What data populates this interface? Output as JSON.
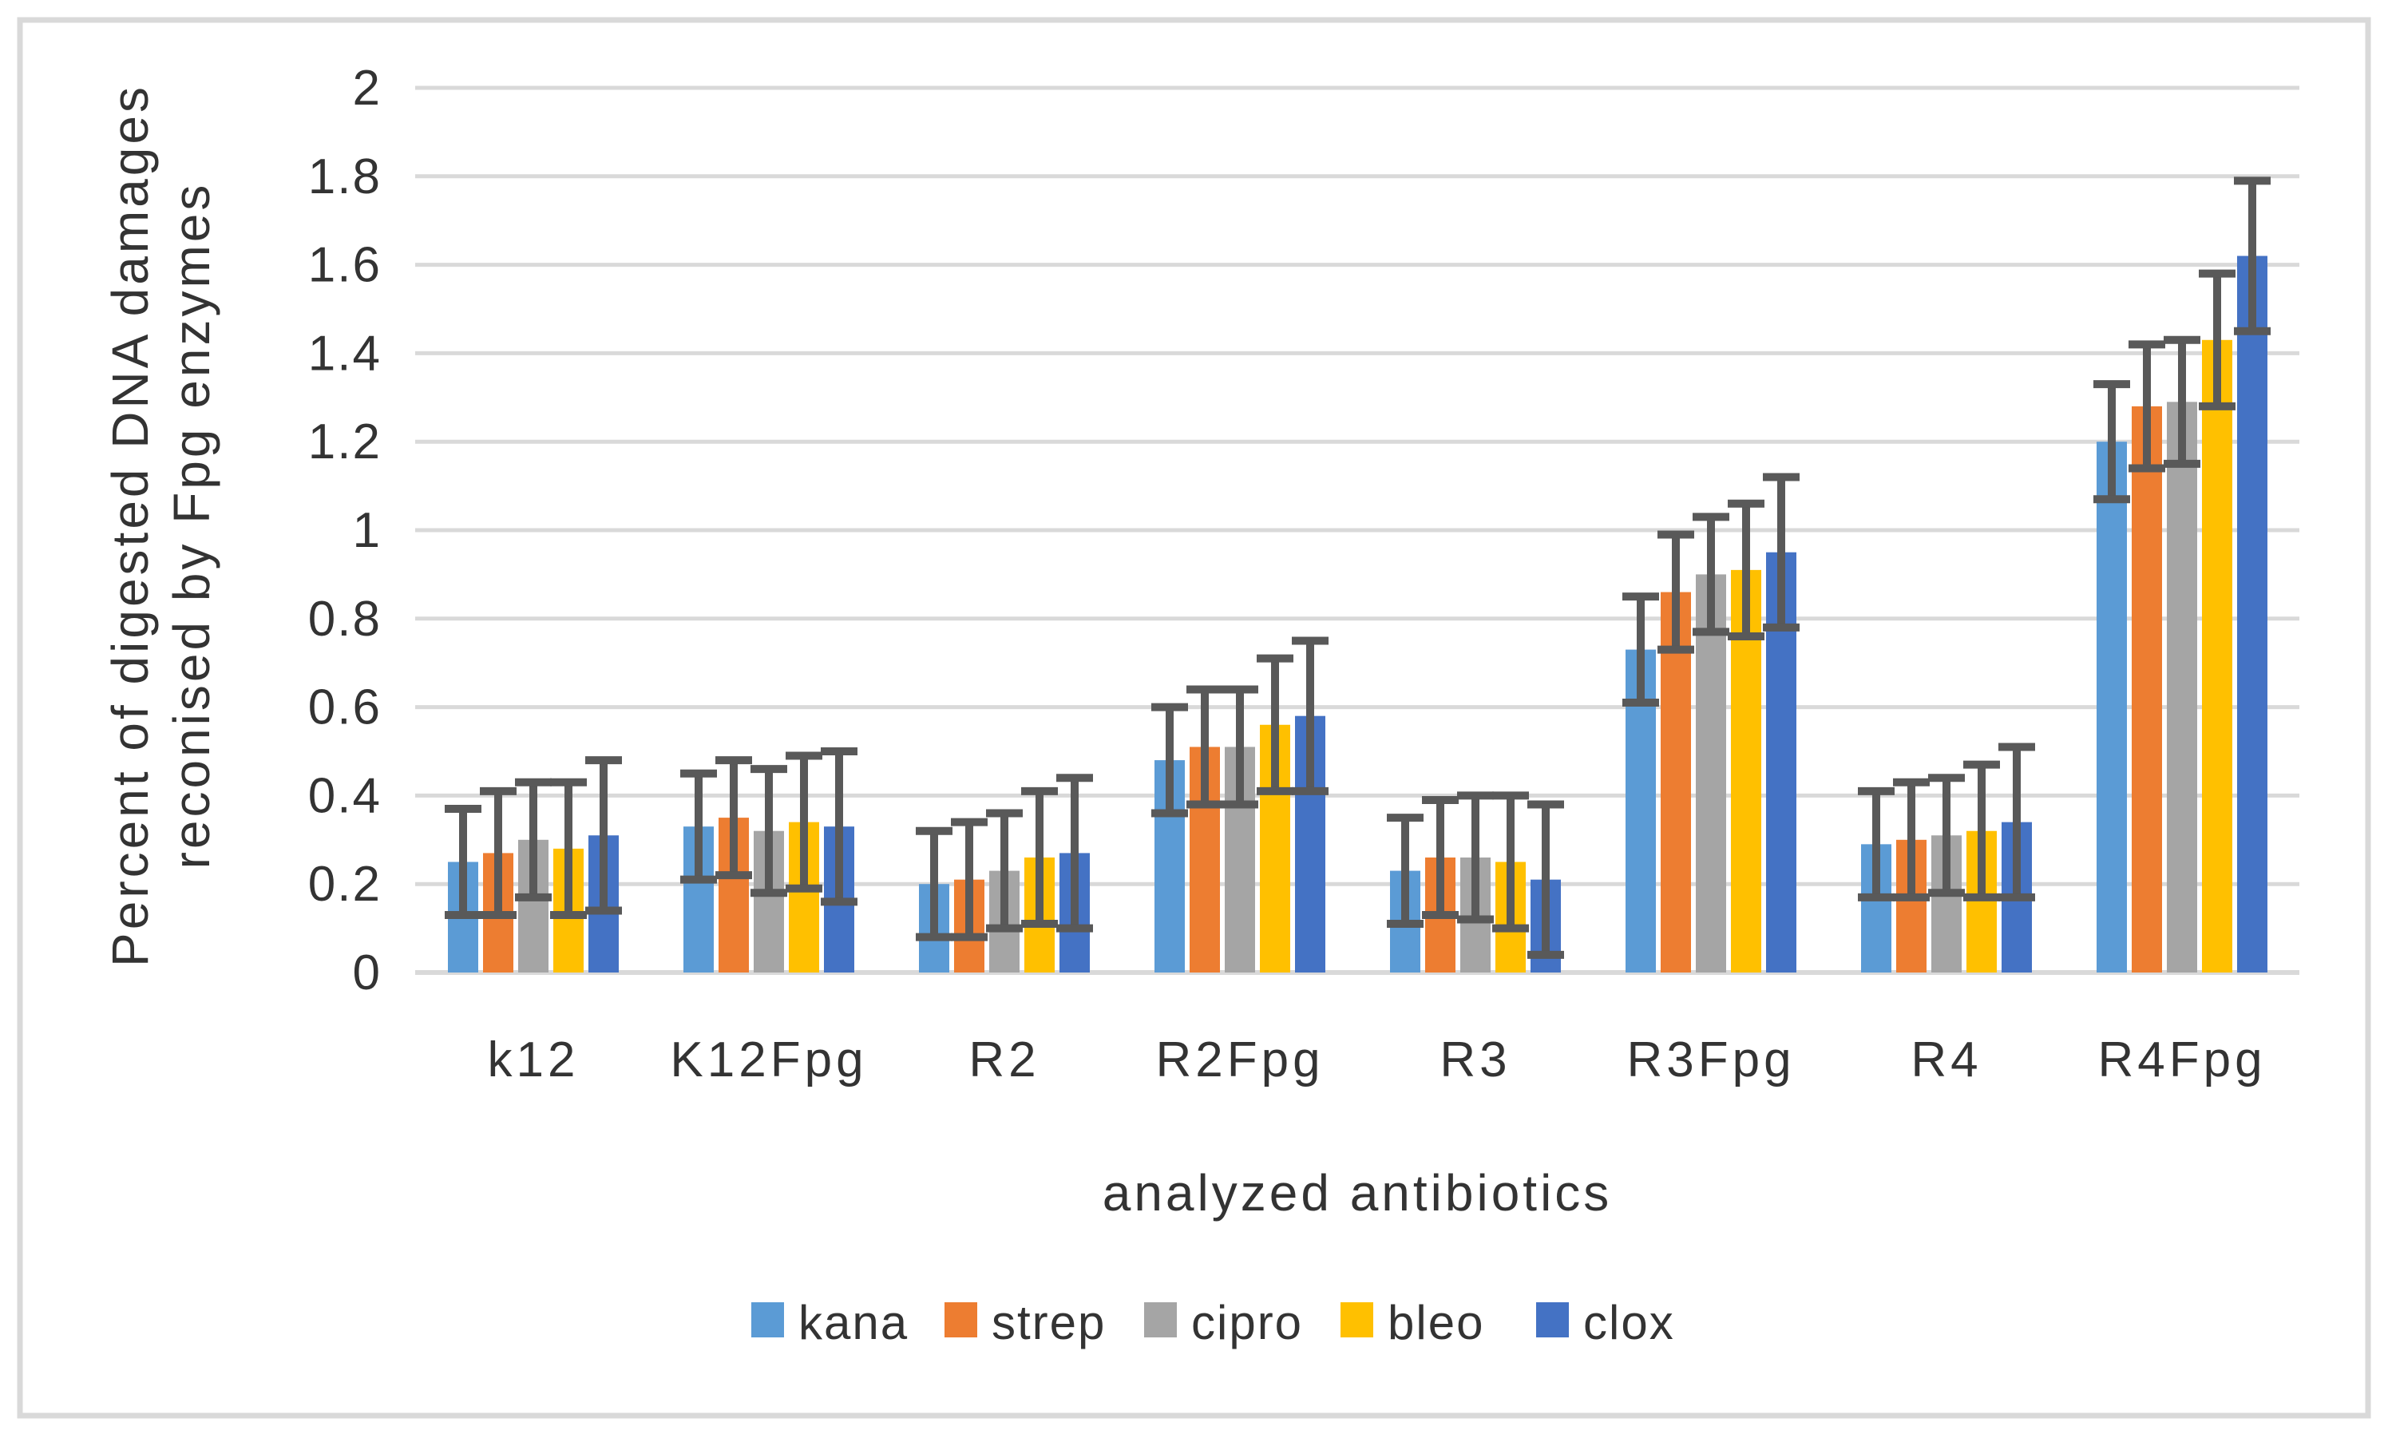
{
  "figure": {
    "background": "#ffffff",
    "border_color": "#d9d9d9"
  },
  "chart_data": {
    "type": "bar",
    "title": "",
    "xlabel": "analyzed antibiotics",
    "ylabel": "Percent of digested DNA damages reconised by Fpg enzymes",
    "ylabel_line1": "Percent of digested DNA damages",
    "ylabel_line2": "reconised by Fpg enzymes",
    "categories": [
      "k12",
      "K12Fpg",
      "R2",
      "R2Fpg",
      "R3",
      "R3Fpg",
      "R4",
      "R4Fpg"
    ],
    "series": [
      {
        "name": "kana",
        "color": "#5B9BD5",
        "values": [
          0.25,
          0.33,
          0.2,
          0.48,
          0.23,
          0.73,
          0.29,
          1.2
        ],
        "errors": [
          0.12,
          0.12,
          0.12,
          0.12,
          0.12,
          0.12,
          0.12,
          0.13
        ]
      },
      {
        "name": "strep",
        "color": "#ED7D31",
        "values": [
          0.27,
          0.35,
          0.21,
          0.51,
          0.26,
          0.86,
          0.3,
          1.28
        ],
        "errors": [
          0.14,
          0.13,
          0.13,
          0.13,
          0.13,
          0.13,
          0.13,
          0.14
        ]
      },
      {
        "name": "cipro",
        "color": "#A5A5A5",
        "values": [
          0.3,
          0.32,
          0.23,
          0.51,
          0.26,
          0.9,
          0.31,
          1.29
        ],
        "errors": [
          0.13,
          0.14,
          0.13,
          0.13,
          0.14,
          0.13,
          0.13,
          0.14
        ]
      },
      {
        "name": "bleo",
        "color": "#FFC000",
        "values": [
          0.28,
          0.34,
          0.26,
          0.56,
          0.25,
          0.91,
          0.32,
          1.43
        ],
        "errors": [
          0.15,
          0.15,
          0.15,
          0.15,
          0.15,
          0.15,
          0.15,
          0.15
        ]
      },
      {
        "name": "clox",
        "color": "#4472C4",
        "values": [
          0.31,
          0.33,
          0.27,
          0.58,
          0.21,
          0.95,
          0.34,
          1.62
        ],
        "errors": [
          0.17,
          0.17,
          0.17,
          0.17,
          0.17,
          0.17,
          0.17,
          0.17
        ]
      }
    ],
    "ylim": [
      0,
      2
    ],
    "ytick_step": 0.2,
    "ytick_labels": [
      "0",
      "0.2",
      "0.4",
      "0.6",
      "0.8",
      "1",
      "1.2",
      "1.4",
      "1.6",
      "1.8",
      "2"
    ],
    "grid": "horizontal",
    "gridline_color": "#D9D9D9",
    "errorbar_color": "#595959",
    "text_color": "#333333",
    "legend_position": "bottom",
    "legend_labels": [
      "kana",
      "strep",
      "cipro",
      "bleo",
      "clox"
    ]
  }
}
